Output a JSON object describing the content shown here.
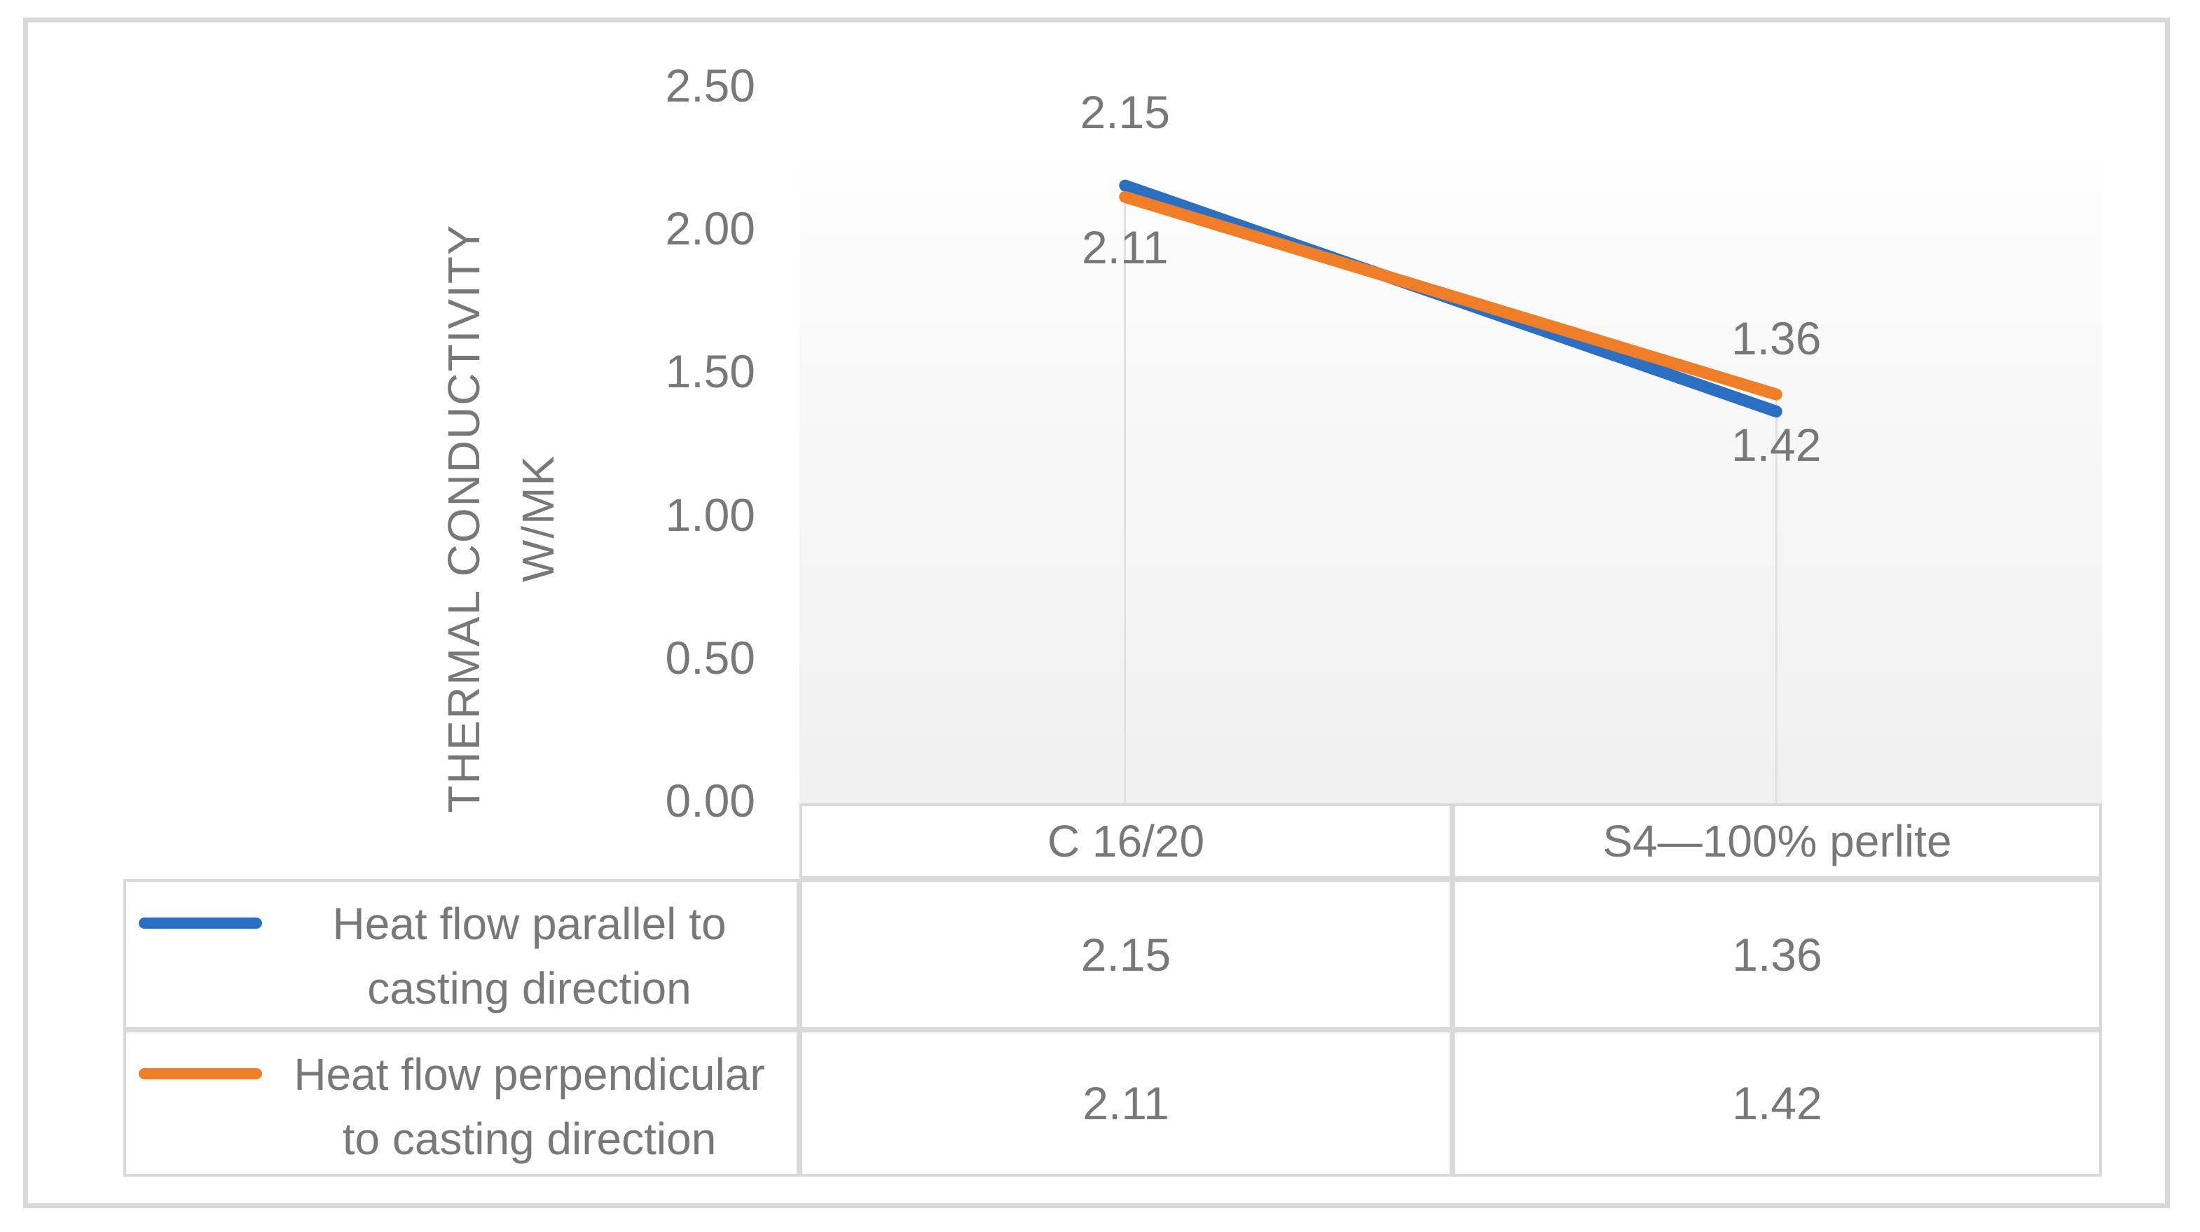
{
  "chart_data": {
    "type": "line",
    "title": "",
    "categories": [
      "C 16/20",
      "S4—100% perlite"
    ],
    "series": [
      {
        "name": "Heat flow parallel to casting direction",
        "name_lines": "Heat flow parallel to\ncasting direction",
        "color": "#2B6FC3",
        "values": [
          2.15,
          1.36
        ],
        "labels": [
          "2.15",
          "1.36"
        ],
        "label_position": "above"
      },
      {
        "name": "Heat flow perpendicular to casting direction",
        "name_lines": "Heat flow perpendicular\nto casting direction",
        "color": "#F07E28",
        "values": [
          2.11,
          1.42
        ],
        "labels": [
          "2.11",
          "1.42"
        ],
        "label_position": "below"
      }
    ],
    "xlabel": "",
    "ylabel": "THERMAL CONDUCTIVITY\nW/MK",
    "ylim": [
      0,
      2.5
    ],
    "yticks": [
      {
        "value": 2.5,
        "label": "2.50"
      },
      {
        "value": 2.0,
        "label": "2.00"
      },
      {
        "value": 1.5,
        "label": "1.50"
      },
      {
        "value": 1.0,
        "label": "1.00"
      },
      {
        "value": 0.5,
        "label": "0.50"
      },
      {
        "value": 0.0,
        "label": "0.00"
      }
    ],
    "grid": "drop-lines-at-categories",
    "legend_position": "data-table-left-column",
    "style": {
      "accent_blue": "#2B6FC3",
      "accent_orange": "#F07E28",
      "text_gray": "#787878",
      "border_gray": "#d9d9d9",
      "plot_fill_bottom": "#f0f0f0",
      "drop_line_gray": "#e0e0e0"
    }
  }
}
